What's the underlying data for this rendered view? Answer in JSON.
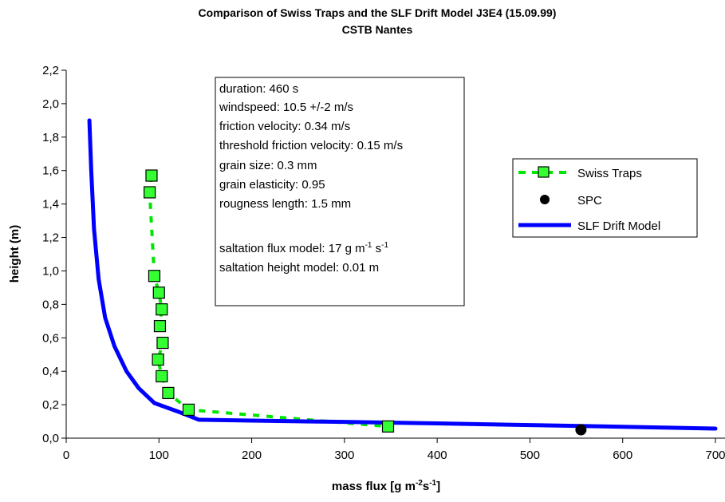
{
  "chart_data": {
    "type": "scatter",
    "title": "Comparison of Swiss Traps and the SLF Drift Model J3E4  (15.09.99)",
    "subtitle": "CSTB Nantes",
    "xlabel": {
      "base": "mass flux [g m",
      "sup1": "-2",
      "mid": "s",
      "sup2": "-1",
      "end": "]"
    },
    "ylabel": "height (m)",
    "xlim": [
      0,
      700
    ],
    "ylim": [
      0,
      2.2
    ],
    "x_ticks": [
      "0",
      "100",
      "200",
      "300",
      "400",
      "500",
      "600",
      "700"
    ],
    "y_ticks": [
      "0,0",
      "0,2",
      "0,4",
      "0,6",
      "0,8",
      "1,0",
      "1,2",
      "1,4",
      "1,6",
      "1,8",
      "2,0",
      "2,2"
    ],
    "grid": false,
    "legend_position": "right",
    "series": [
      {
        "name": "Swiss Traps",
        "style": "dashed-line-square-markers",
        "color": "#00e600",
        "marker_fill": "#33ff33",
        "x": [
          92,
          90,
          95,
          100,
          103,
          101,
          104,
          99,
          103,
          110,
          132,
          347
        ],
        "y": [
          1.57,
          1.47,
          0.97,
          0.87,
          0.77,
          0.67,
          0.57,
          0.47,
          0.37,
          0.27,
          0.17,
          0.07
        ]
      },
      {
        "name": "SPC",
        "style": "circle-marker",
        "color": "#000000",
        "x": [
          555
        ],
        "y": [
          0.05
        ]
      },
      {
        "name": "SLF Drift Model",
        "style": "solid-line",
        "color": "#0000ff",
        "x": [
          25,
          27,
          30,
          35,
          42,
          52,
          65,
          78,
          95,
          120,
          143,
          200,
          300,
          400,
          500,
          600,
          700
        ],
        "y": [
          1.9,
          1.6,
          1.25,
          0.95,
          0.72,
          0.55,
          0.4,
          0.3,
          0.21,
          0.16,
          0.11,
          0.105,
          0.097,
          0.088,
          0.078,
          0.068,
          0.057
        ]
      }
    ],
    "annotation_lines": [
      "duration: 460 s",
      "windspeed: 10.5 +/-2 m/s",
      "friction velocity: 0.34 m/s",
      "threshold friction velocity: 0.15 m/s",
      "grain size: 0.3 mm",
      "grain elasticity: 0.95",
      "rougness length: 1.5 mm"
    ],
    "annotation_flux": {
      "base": "saltation flux model: 17 g m",
      "sup1": "-1",
      "mid": " s",
      "sup2": "-1"
    },
    "annotation_height": "saltation height model: 0.01 m"
  }
}
